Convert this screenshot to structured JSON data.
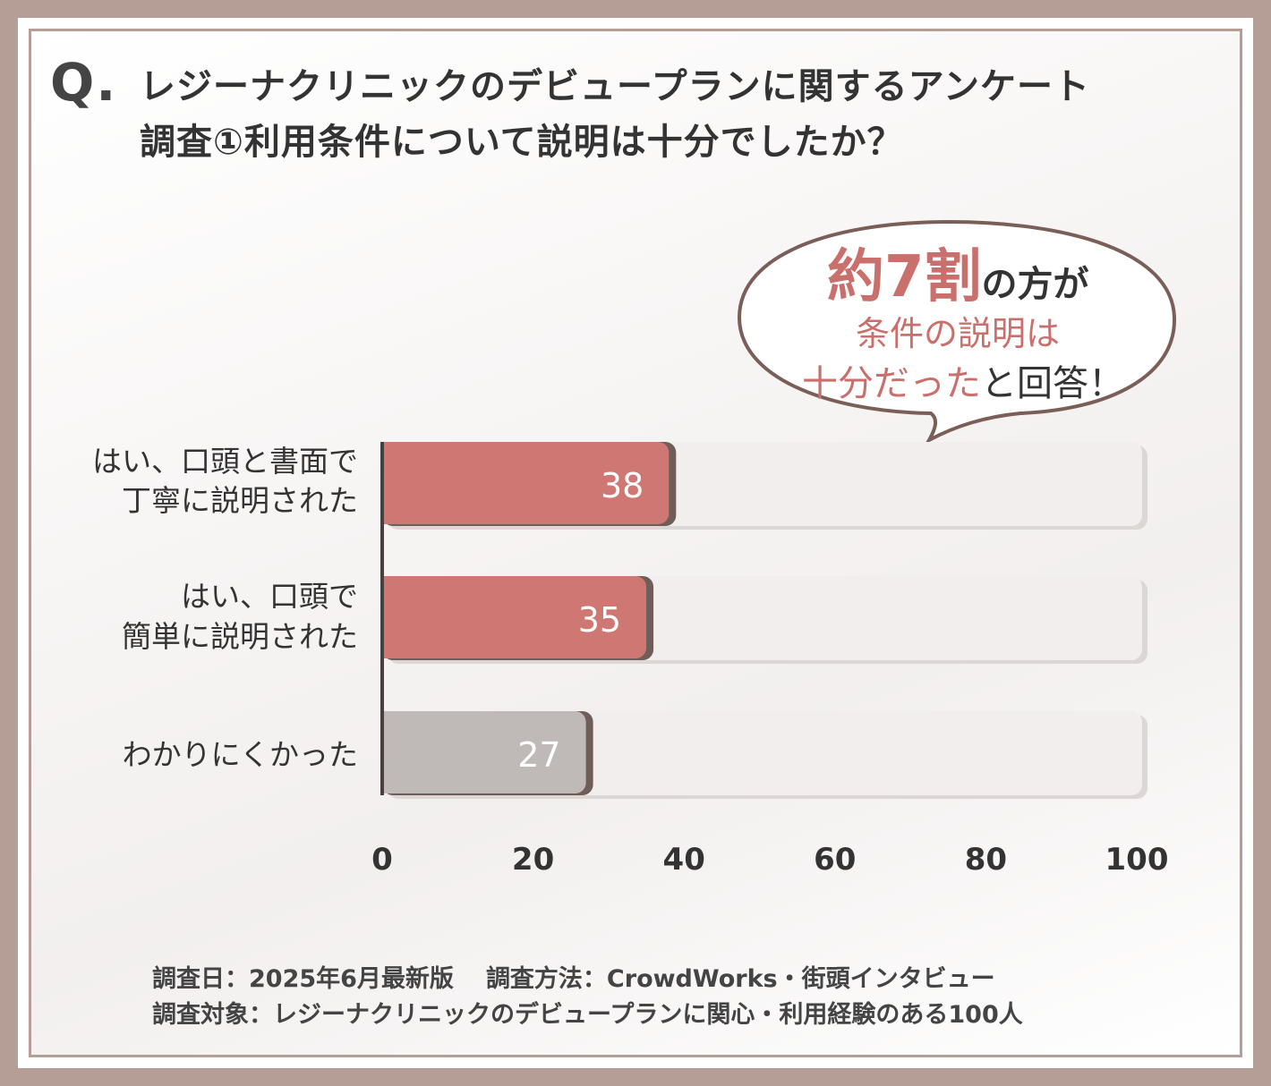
{
  "question": {
    "mark": "Q.",
    "line1": "レジーナクリニックのデビュープランに関するアンケート",
    "line2": "調査①利用条件について説明は十分でしたか？"
  },
  "callout": {
    "highlight": "約7割",
    "line1_rest": "の方が",
    "line2": "条件の説明は",
    "line3_highlight": "十分だった",
    "line3_rest": "と回答！"
  },
  "chart_data": {
    "type": "bar",
    "orientation": "horizontal",
    "categories": [
      [
        "はい、口頭と書面で",
        "丁寧に説明された"
      ],
      [
        "はい、口頭で",
        "簡単に説明された"
      ],
      [
        "わかりにくかった"
      ]
    ],
    "values": [
      38,
      35,
      27
    ],
    "value_labels": [
      "38",
      "35",
      "27"
    ],
    "bar_colors": [
      "#cf7773",
      "#cf7773",
      "#bfb9b7"
    ],
    "track_color": "#f1eeed",
    "xlim": [
      0,
      100
    ],
    "xticks": [
      0,
      20,
      40,
      60,
      80,
      100
    ],
    "xtick_labels": [
      "0",
      "20",
      "40",
      "60",
      "80",
      "100"
    ],
    "grid": false
  },
  "footer": {
    "date": "調査日：2025年6月最新版",
    "method": "調査方法：CrowdWorks・街頭インタビュー",
    "target": "調査対象：レジーナクリニックのデビュープランに関心・利用経験のある100人"
  }
}
